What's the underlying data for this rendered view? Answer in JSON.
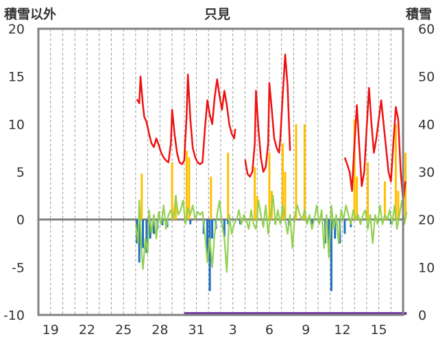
{
  "chart_data": {
    "type": "line",
    "title": "只見",
    "ylabel_left": "積雪以外",
    "ylabel_right": "積雪",
    "ylim_left": [
      -10,
      20
    ],
    "yticks_left": [
      20,
      15,
      10,
      5,
      0,
      -5,
      -10
    ],
    "ylim_right": [
      0,
      60
    ],
    "yticks_right": [
      60,
      50,
      40,
      30,
      20,
      10,
      0
    ],
    "xlim": [
      0,
      30
    ],
    "xtick_labels": [
      "19",
      "22",
      "25",
      "28",
      "31",
      "3",
      "6",
      "9",
      "12",
      "15"
    ],
    "xtick_positions": [
      1,
      4,
      7,
      10,
      13,
      16,
      19,
      22,
      25,
      28
    ],
    "zero_line": 0,
    "grid": "vertical-dashed",
    "colors": {
      "red": "#ee1111",
      "orange": "#ffc000",
      "blue": "#1f6fbf",
      "green": "#92d050",
      "purple": "#7030a0",
      "axis": "#808080"
    },
    "series": [
      {
        "color": "red",
        "axis": "left",
        "segments": [
          [
            [
              8.1,
              12.6
            ],
            [
              8.3,
              12.2
            ],
            [
              8.4,
              15.0
            ],
            [
              8.5,
              13.5
            ],
            [
              8.6,
              12.0
            ],
            [
              8.7,
              10.8
            ],
            [
              8.9,
              10.2
            ],
            [
              9.1,
              9.0
            ],
            [
              9.3,
              8.0
            ],
            [
              9.5,
              7.6
            ],
            [
              9.7,
              8.5
            ],
            [
              9.9,
              7.8
            ],
            [
              10.1,
              7.0
            ],
            [
              10.3,
              6.5
            ],
            [
              10.5,
              6.2
            ],
            [
              10.7,
              6.0
            ],
            [
              10.9,
              8.0
            ],
            [
              11.0,
              11.5
            ],
            [
              11.2,
              9.0
            ],
            [
              11.4,
              7.0
            ],
            [
              11.6,
              6.0
            ],
            [
              11.8,
              5.8
            ],
            [
              12.0,
              6.2
            ],
            [
              12.2,
              11.0
            ],
            [
              12.3,
              15.2
            ],
            [
              12.5,
              10.5
            ],
            [
              12.7,
              7.5
            ],
            [
              12.9,
              6.5
            ],
            [
              13.1,
              6.0
            ],
            [
              13.3,
              5.8
            ],
            [
              13.5,
              6.0
            ],
            [
              13.7,
              9.5
            ],
            [
              13.9,
              12.5
            ],
            [
              14.1,
              11.0
            ],
            [
              14.3,
              10.0
            ],
            [
              14.5,
              12.8
            ],
            [
              14.7,
              14.7
            ],
            [
              14.9,
              13.0
            ],
            [
              15.1,
              11.5
            ],
            [
              15.3,
              13.5
            ],
            [
              15.5,
              12.0
            ],
            [
              15.7,
              10.0
            ],
            [
              15.9,
              9.0
            ],
            [
              16.1,
              8.5
            ],
            [
              16.2,
              9.5
            ]
          ],
          [
            [
              17.0,
              6.3
            ],
            [
              17.2,
              4.8
            ],
            [
              17.4,
              4.5
            ],
            [
              17.6,
              5.0
            ],
            [
              17.8,
              8.0
            ],
            [
              17.9,
              13.5
            ],
            [
              18.1,
              9.5
            ],
            [
              18.3,
              6.5
            ],
            [
              18.5,
              5.0
            ],
            [
              18.7,
              5.5
            ],
            [
              18.9,
              8.0
            ],
            [
              19.0,
              14.3
            ],
            [
              19.2,
              11.5
            ],
            [
              19.4,
              8.5
            ],
            [
              19.6,
              7.5
            ],
            [
              19.8,
              7.0
            ],
            [
              19.9,
              8.5
            ],
            [
              20.1,
              13.0
            ],
            [
              20.3,
              17.3
            ],
            [
              20.5,
              14.0
            ],
            [
              20.7,
              7.2
            ]
          ],
          [
            [
              25.2,
              6.5
            ],
            [
              25.4,
              5.8
            ],
            [
              25.6,
              5.0
            ],
            [
              25.8,
              3.0
            ],
            [
              26.0,
              8.0
            ],
            [
              26.2,
              12.0
            ],
            [
              26.4,
              7.5
            ],
            [
              26.6,
              3.5
            ],
            [
              26.8,
              5.0
            ],
            [
              27.0,
              9.5
            ],
            [
              27.2,
              13.8
            ],
            [
              27.4,
              10.0
            ],
            [
              27.6,
              7.0
            ],
            [
              27.8,
              8.5
            ],
            [
              28.0,
              10.5
            ],
            [
              28.2,
              12.5
            ],
            [
              28.4,
              10.0
            ],
            [
              28.6,
              7.5
            ],
            [
              28.8,
              5.0
            ],
            [
              29.0,
              4.0
            ],
            [
              29.2,
              8.0
            ],
            [
              29.4,
              11.8
            ],
            [
              29.6,
              10.5
            ],
            [
              29.8,
              5.0
            ],
            [
              30.0,
              2.0
            ],
            [
              30.2,
              4.0
            ]
          ]
        ]
      },
      {
        "color": "orange",
        "axis": "left",
        "type": "bar",
        "points": [
          [
            8.5,
            4.8
          ],
          [
            11.0,
            6.0
          ],
          [
            11.3,
            2.5
          ],
          [
            12.2,
            7.2
          ],
          [
            12.4,
            6.5
          ],
          [
            14.2,
            4.5
          ],
          [
            15.6,
            7.0
          ],
          [
            17.8,
            5.5
          ],
          [
            18.0,
            2.5
          ],
          [
            19.0,
            7.0
          ],
          [
            19.2,
            3.0
          ],
          [
            20.1,
            8.0
          ],
          [
            20.3,
            5.0
          ],
          [
            21.2,
            10.0
          ],
          [
            21.9,
            10.0
          ],
          [
            26.0,
            10.5
          ],
          [
            26.2,
            4.5
          ],
          [
            27.1,
            6.0
          ],
          [
            28.5,
            4.0
          ],
          [
            29.4,
            10.0
          ],
          [
            29.6,
            3.0
          ],
          [
            30.0,
            9.0
          ],
          [
            30.2,
            7.0
          ]
        ]
      },
      {
        "color": "blue",
        "axis": "left",
        "type": "bar",
        "points": [
          [
            8.1,
            -2.5
          ],
          [
            8.3,
            -4.5
          ],
          [
            8.6,
            -3.0
          ],
          [
            8.9,
            -3.5
          ],
          [
            9.2,
            -2.0
          ],
          [
            9.5,
            -1.5
          ],
          [
            9.8,
            -1.0
          ],
          [
            10.2,
            -0.6
          ],
          [
            10.6,
            -0.8
          ],
          [
            12.5,
            -0.5
          ],
          [
            13.6,
            -1.5
          ],
          [
            13.9,
            -4.0
          ],
          [
            14.1,
            -7.5
          ],
          [
            14.3,
            -2.0
          ],
          [
            14.6,
            -1.0
          ],
          [
            15.3,
            -1.8
          ],
          [
            15.6,
            -0.5
          ],
          [
            16.6,
            -0.5
          ],
          [
            19.5,
            -0.5
          ],
          [
            20.6,
            -0.6
          ],
          [
            22.5,
            -0.5
          ],
          [
            23.6,
            -2.5
          ],
          [
            23.9,
            -3.5
          ],
          [
            24.1,
            -7.5
          ],
          [
            24.4,
            -2.0
          ],
          [
            24.8,
            -2.5
          ],
          [
            25.2,
            -1.5
          ],
          [
            25.7,
            -0.8
          ],
          [
            29.0,
            -0.5
          ]
        ]
      },
      {
        "color": "green",
        "axis": "left",
        "points": [
          [
            8.0,
            -0.5
          ],
          [
            8.2,
            -2.5
          ],
          [
            8.3,
            2.0
          ],
          [
            8.5,
            -3.5
          ],
          [
            8.6,
            -5.2
          ],
          [
            8.8,
            -2.0
          ],
          [
            9.0,
            -3.5
          ],
          [
            9.1,
            1.0
          ],
          [
            9.3,
            -1.5
          ],
          [
            9.5,
            0.5
          ],
          [
            9.7,
            -2.0
          ],
          [
            9.9,
            0.8
          ],
          [
            10.1,
            -0.5
          ],
          [
            10.3,
            1.5
          ],
          [
            10.5,
            -1.0
          ],
          [
            10.7,
            0.5
          ],
          [
            10.9,
            1.0
          ],
          [
            11.1,
            0.0
          ],
          [
            11.3,
            2.5
          ],
          [
            11.5,
            0.5
          ],
          [
            11.7,
            1.0
          ],
          [
            11.9,
            2.0
          ],
          [
            12.1,
            -0.5
          ],
          [
            12.3,
            1.2
          ],
          [
            12.5,
            0.5
          ],
          [
            12.7,
            1.5
          ],
          [
            12.9,
            0.0
          ],
          [
            13.1,
            0.8
          ],
          [
            13.3,
            0.5
          ],
          [
            13.5,
            0.8
          ],
          [
            13.7,
            -1.5
          ],
          [
            13.9,
            -4.5
          ],
          [
            14.1,
            -2.0
          ],
          [
            14.3,
            -5.0
          ],
          [
            14.5,
            -1.5
          ],
          [
            14.7,
            0.5
          ],
          [
            14.9,
            2.0
          ],
          [
            15.1,
            -0.5
          ],
          [
            15.3,
            -2.0
          ],
          [
            15.5,
            -5.5
          ],
          [
            15.7,
            0.5
          ],
          [
            15.9,
            -1.5
          ],
          [
            16.1,
            -0.5
          ],
          [
            16.3,
            0.0
          ],
          [
            16.5,
            1.0
          ],
          [
            16.7,
            -0.5
          ],
          [
            16.9,
            0.5
          ],
          [
            17.1,
            0.0
          ],
          [
            17.3,
            -1.0
          ],
          [
            17.5,
            1.0
          ],
          [
            17.7,
            -0.5
          ],
          [
            17.9,
            -1.0
          ],
          [
            18.1,
            2.0
          ],
          [
            18.3,
            0.5
          ],
          [
            18.5,
            -0.8
          ],
          [
            18.7,
            1.5
          ],
          [
            18.9,
            -1.5
          ],
          [
            19.1,
            0.5
          ],
          [
            19.3,
            2.5
          ],
          [
            19.5,
            -0.5
          ],
          [
            19.7,
            1.0
          ],
          [
            19.9,
            -0.5
          ],
          [
            20.1,
            1.5
          ],
          [
            20.3,
            0.0
          ],
          [
            20.5,
            -1.5
          ],
          [
            20.7,
            0.5
          ],
          [
            20.9,
            -3.0
          ],
          [
            21.1,
            0.5
          ],
          [
            21.3,
            1.5
          ],
          [
            21.5,
            0.5
          ],
          [
            21.7,
            0.0
          ],
          [
            21.9,
            1.0
          ],
          [
            22.1,
            -0.5
          ],
          [
            22.3,
            0.5
          ],
          [
            22.5,
            -1.0
          ],
          [
            22.7,
            0.0
          ],
          [
            22.9,
            1.5
          ],
          [
            23.1,
            -0.5
          ],
          [
            23.3,
            1.0
          ],
          [
            23.5,
            -3.0
          ],
          [
            23.7,
            0.5
          ],
          [
            23.9,
            -4.0
          ],
          [
            24.1,
            1.5
          ],
          [
            24.3,
            -1.0
          ],
          [
            24.5,
            0.5
          ],
          [
            24.7,
            -2.5
          ],
          [
            24.9,
            1.0
          ],
          [
            25.1,
            0.0
          ],
          [
            25.3,
            1.5
          ],
          [
            25.5,
            0.5
          ],
          [
            25.7,
            -0.5
          ],
          [
            25.9,
            1.0
          ],
          [
            26.1,
            0.0
          ],
          [
            26.3,
            0.5
          ],
          [
            26.5,
            -0.5
          ],
          [
            26.7,
            0.5
          ],
          [
            26.9,
            1.0
          ],
          [
            27.1,
            -1.0
          ],
          [
            27.3,
            0.5
          ],
          [
            27.5,
            -2.5
          ],
          [
            27.7,
            0.5
          ],
          [
            27.9,
            -0.5
          ],
          [
            28.1,
            1.5
          ],
          [
            28.3,
            -0.5
          ],
          [
            28.5,
            0.5
          ],
          [
            28.7,
            0.0
          ],
          [
            28.9,
            1.0
          ],
          [
            29.1,
            -0.5
          ],
          [
            29.3,
            1.5
          ],
          [
            29.5,
            -1.0
          ],
          [
            29.7,
            0.5
          ],
          [
            29.9,
            2.0
          ],
          [
            30.1,
            -0.5
          ],
          [
            30.3,
            0.8
          ]
        ]
      },
      {
        "color": "purple",
        "axis": "right",
        "segments": [
          [
            [
              12.0,
              0.3
            ],
            [
              30.3,
              0.3
            ]
          ]
        ]
      }
    ]
  }
}
